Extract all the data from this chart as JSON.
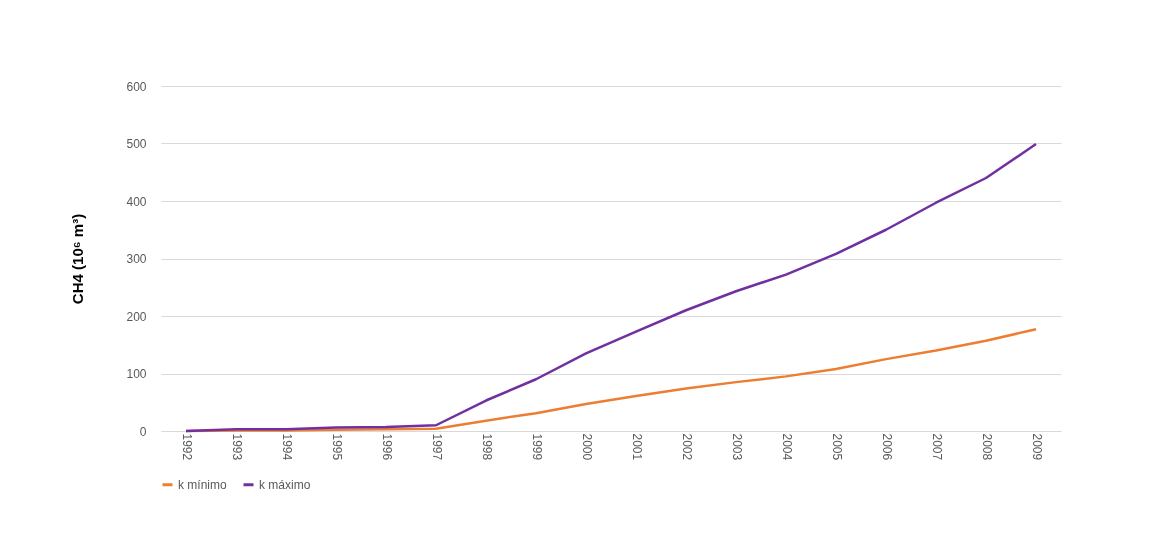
{
  "chart_data": {
    "type": "line",
    "ylabel": "CH4 (10⁶ m³)",
    "categories": [
      "1992",
      "1993",
      "1994",
      "1995",
      "1996",
      "1997",
      "1998",
      "1999",
      "2000",
      "2001",
      "2002",
      "2003",
      "2004",
      "2005",
      "2006",
      "2007",
      "2008",
      "2009"
    ],
    "series": [
      {
        "name": "k mínimo",
        "color": "#ed7d31",
        "values": [
          0,
          1,
          1,
          2,
          3,
          4,
          18,
          31,
          47,
          61,
          74,
          85,
          95,
          108,
          125,
          140,
          157,
          177
        ]
      },
      {
        "name": "k máximo",
        "color": "#7030a0",
        "values": [
          0,
          3,
          3,
          6,
          7,
          10,
          53,
          90,
          135,
          173,
          210,
          243,
          272,
          308,
          350,
          397,
          440,
          499
        ]
      }
    ],
    "ylim": [
      0,
      600
    ],
    "yticks": [
      0,
      100,
      200,
      300,
      400,
      500,
      600
    ],
    "grid": "y",
    "legend": "bottom",
    "marker": "none",
    "line_style": "solid"
  }
}
